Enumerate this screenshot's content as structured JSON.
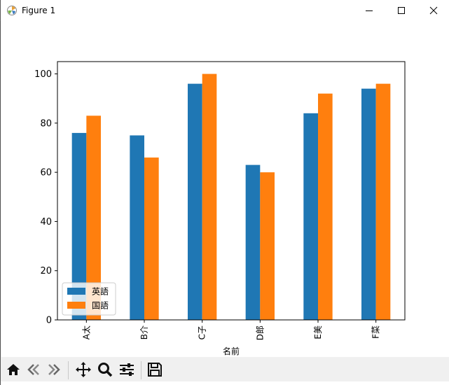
{
  "window": {
    "title": "Figure 1"
  },
  "toolbar": {
    "buttons": [
      "home-icon",
      "back-icon",
      "forward-icon",
      "pan-icon",
      "zoom-icon",
      "configure-icon",
      "save-icon"
    ]
  },
  "chart_data": {
    "type": "bar",
    "categories": [
      "A太",
      "B介",
      "C子",
      "D郎",
      "E美",
      "F菜"
    ],
    "series": [
      {
        "name": "英語",
        "values": [
          76,
          75,
          96,
          63,
          84,
          94
        ],
        "color": "#1f77b4"
      },
      {
        "name": "国語",
        "values": [
          83,
          66,
          100,
          60,
          92,
          96
        ],
        "color": "#ff7f0e"
      }
    ],
    "xlabel": "名前",
    "ylabel": "",
    "ylim": [
      0,
      105
    ],
    "yticks": [
      0,
      20,
      40,
      60,
      80,
      100
    ],
    "legend": "lower-left",
    "grid": false
  }
}
